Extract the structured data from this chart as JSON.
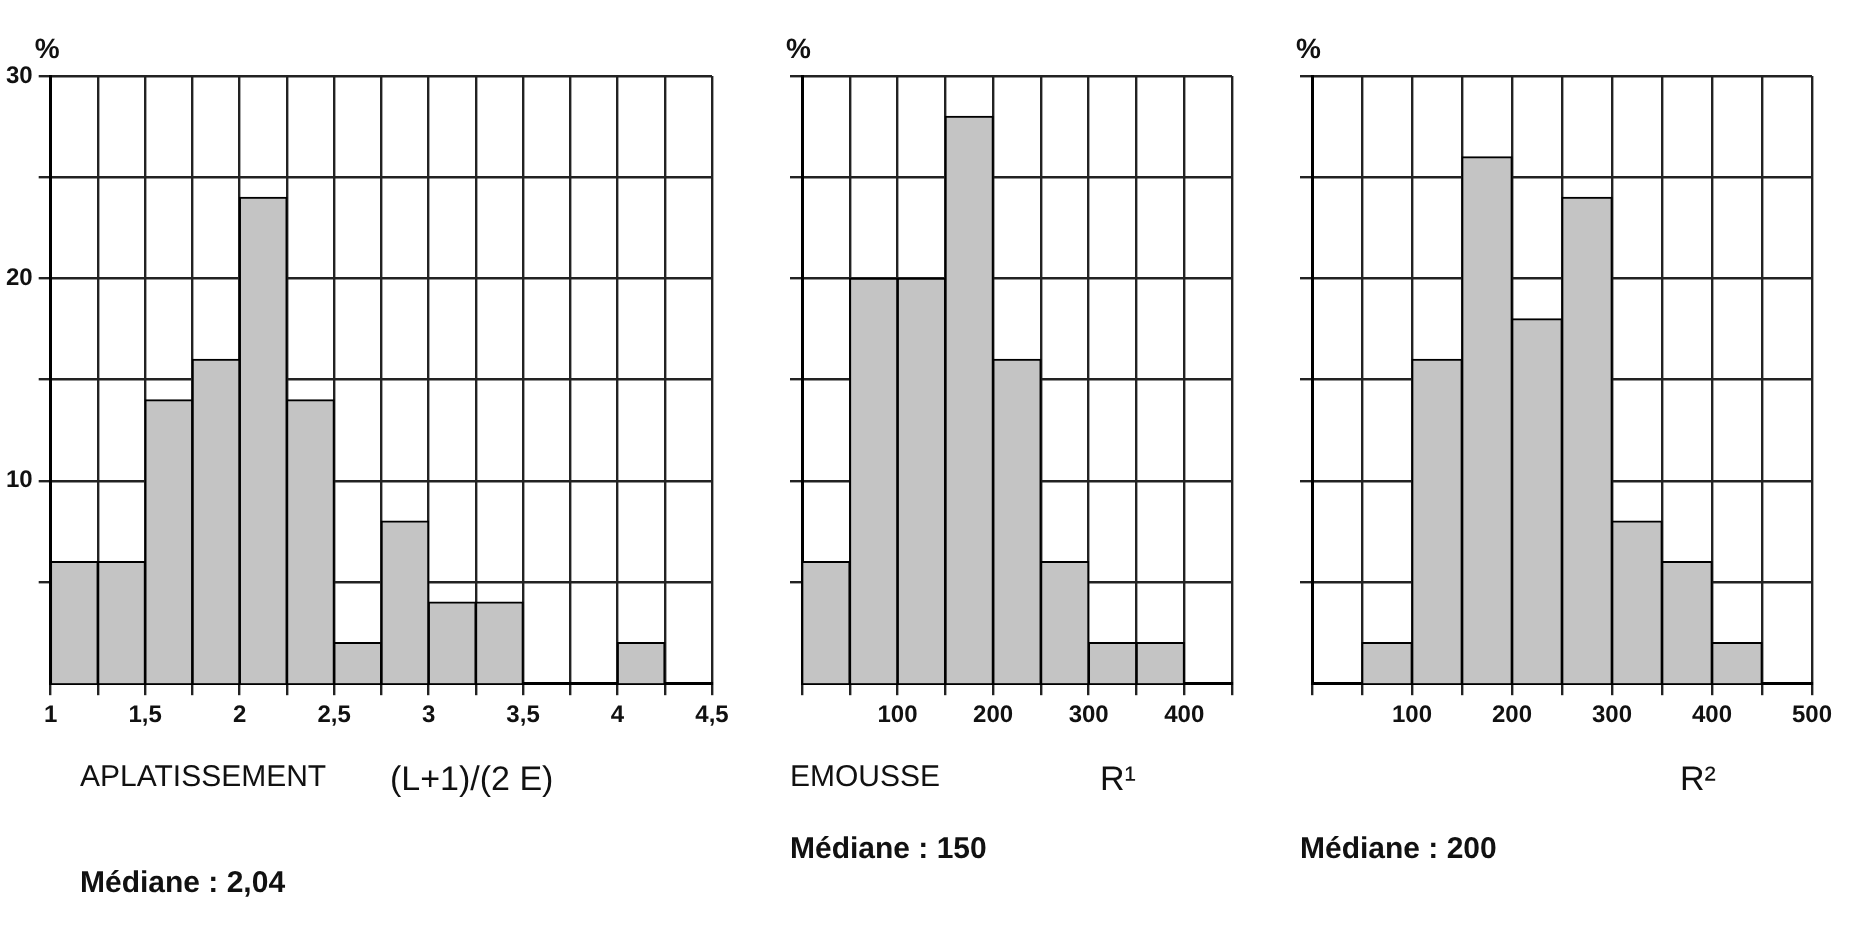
{
  "chart_data": [
    {
      "type": "histogram",
      "ylabel": "%",
      "xlabel": "APLATISSEMENT",
      "color": "#c4c4c4",
      "grid": true,
      "bins": [
        1,
        1.25,
        1.5,
        1.75,
        2,
        2.25,
        2.5,
        2.75,
        3,
        3.25,
        3.5,
        3.75,
        4,
        4.25,
        4.5
      ],
      "values": [
        6,
        6,
        14,
        16,
        24,
        14,
        2,
        8,
        4,
        4,
        0,
        0,
        2,
        0
      ],
      "xlim": [
        1,
        4.5
      ],
      "xticks": [
        1,
        {
          "value": 1.25,
          "label": null
        },
        {
          "value": 1.5,
          "label": "1,5"
        },
        {
          "value": 1.75,
          "label": null
        },
        2,
        {
          "value": 2.25,
          "label": null
        },
        {
          "value": 2.5,
          "label": "2,5"
        },
        {
          "value": 2.75,
          "label": null
        },
        3,
        {
          "value": 3.25,
          "label": null
        },
        {
          "value": 3.5,
          "label": "3,5"
        },
        {
          "value": 3.75,
          "label": null
        },
        4,
        {
          "value": 4.25,
          "label": null
        },
        {
          "value": 4.5,
          "label": "4,5"
        }
      ],
      "ylim": [
        0,
        30
      ],
      "yticks": [
        {
          "value": 5,
          "label": null
        },
        10,
        {
          "value": 15,
          "label": null
        },
        20,
        {
          "value": 25,
          "label": null
        },
        30
      ],
      "annotations": [
        "(L+1)/(2 E)",
        "Médiane : 2,04"
      ]
    },
    {
      "type": "histogram",
      "ylabel": "%",
      "xlabel": "EMOUSSE",
      "color": "#c4c4c4",
      "grid": true,
      "tick_labels": "x",
      "bins": [
        0,
        50,
        100,
        150,
        200,
        250,
        300,
        350,
        400
      ],
      "values": [
        6,
        20,
        20,
        28,
        16,
        6,
        2,
        2
      ],
      "xlim": [
        0,
        450
      ],
      "xticks": [
        {
          "value": 0,
          "label": null
        },
        {
          "value": 50,
          "label": null
        },
        100,
        {
          "value": 150,
          "label": null
        },
        200,
        {
          "value": 250,
          "label": null
        },
        300,
        {
          "value": 350,
          "label": null
        },
        400,
        {
          "value": 450,
          "label": null
        }
      ],
      "ylim": [
        0,
        30
      ],
      "yticks": [
        5,
        10,
        15,
        20,
        25,
        30
      ],
      "annotations": [
        "R¹",
        "Médiane : 150"
      ]
    },
    {
      "type": "histogram",
      "ylabel": "%",
      "color": "#c4c4c4",
      "grid": true,
      "tick_labels": "x",
      "bins": [
        0,
        50,
        100,
        150,
        200,
        250,
        300,
        350,
        400,
        450,
        500
      ],
      "values": [
        0,
        2,
        16,
        26,
        18,
        24,
        8,
        6,
        2,
        0
      ],
      "xlim": [
        0,
        500
      ],
      "xticks": [
        {
          "value": 0,
          "label": null
        },
        {
          "value": 50,
          "label": null
        },
        100,
        {
          "value": 150,
          "label": null
        },
        200,
        {
          "value": 250,
          "label": null
        },
        300,
        {
          "value": 350,
          "label": null
        },
        400,
        {
          "value": 450,
          "label": null
        },
        500
      ],
      "ylim": [
        0,
        30
      ],
      "yticks": [
        5,
        10,
        15,
        20,
        25,
        30
      ],
      "annotations": [
        "R²",
        "Médiane : 200"
      ]
    }
  ]
}
